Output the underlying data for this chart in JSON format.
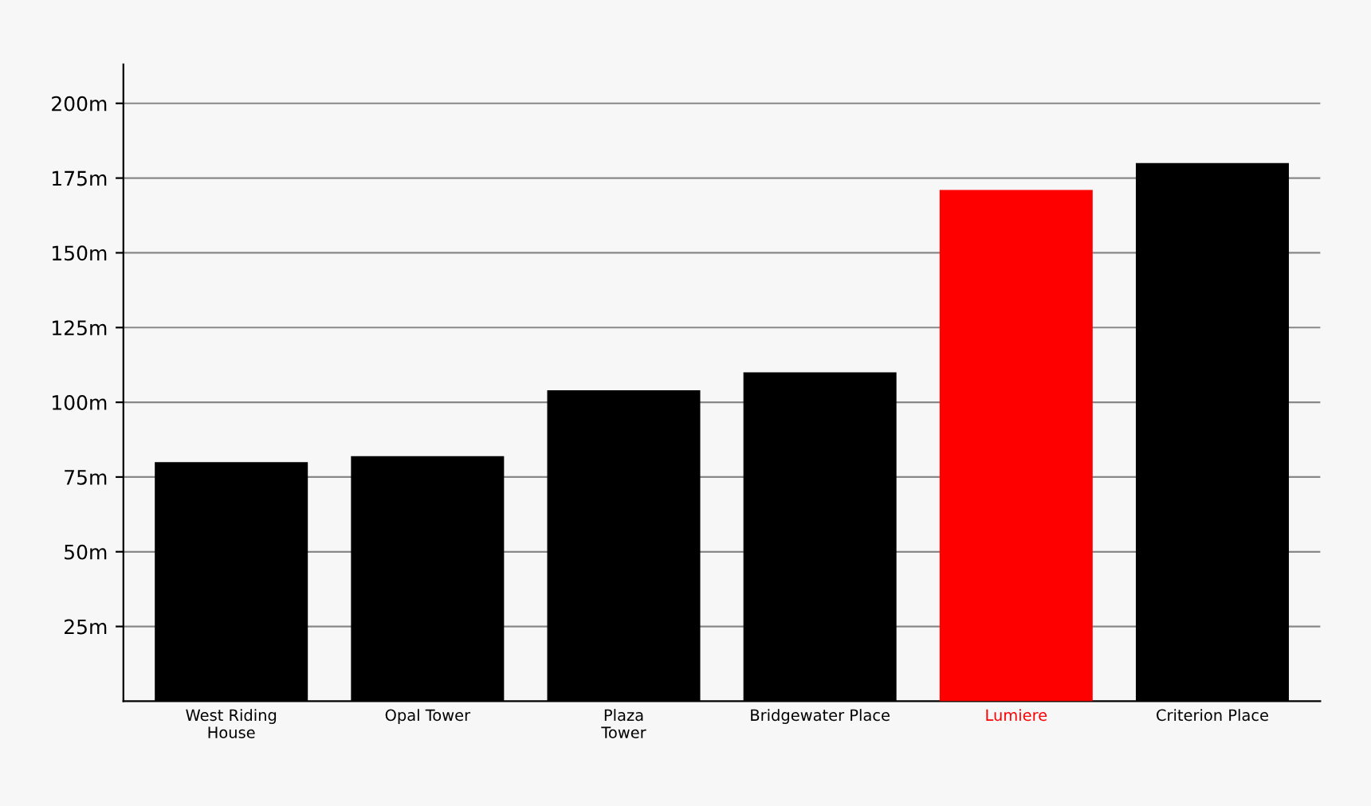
{
  "chart_data": {
    "type": "bar",
    "categories": [
      "West Riding\nHouse",
      "Opal Tower",
      "Plaza\nTower",
      "Bridgewater Place",
      "Lumiere",
      "Criterion Place"
    ],
    "values": [
      80,
      82,
      104,
      110,
      171,
      180
    ],
    "colors": [
      "#000000",
      "#000000",
      "#000000",
      "#000000",
      "#ff0000",
      "#000000"
    ],
    "ylim": [
      0,
      213
    ],
    "yticks": [
      {
        "value": 25,
        "label": "25m"
      },
      {
        "value": 50,
        "label": "50m"
      },
      {
        "value": 75,
        "label": "75m"
      },
      {
        "value": 100,
        "label": "100m"
      },
      {
        "value": 125,
        "label": "125m"
      },
      {
        "value": 150,
        "label": "150m"
      },
      {
        "value": 175,
        "label": "175m"
      },
      {
        "value": 200,
        "label": "200m"
      }
    ],
    "grid": "y"
  }
}
